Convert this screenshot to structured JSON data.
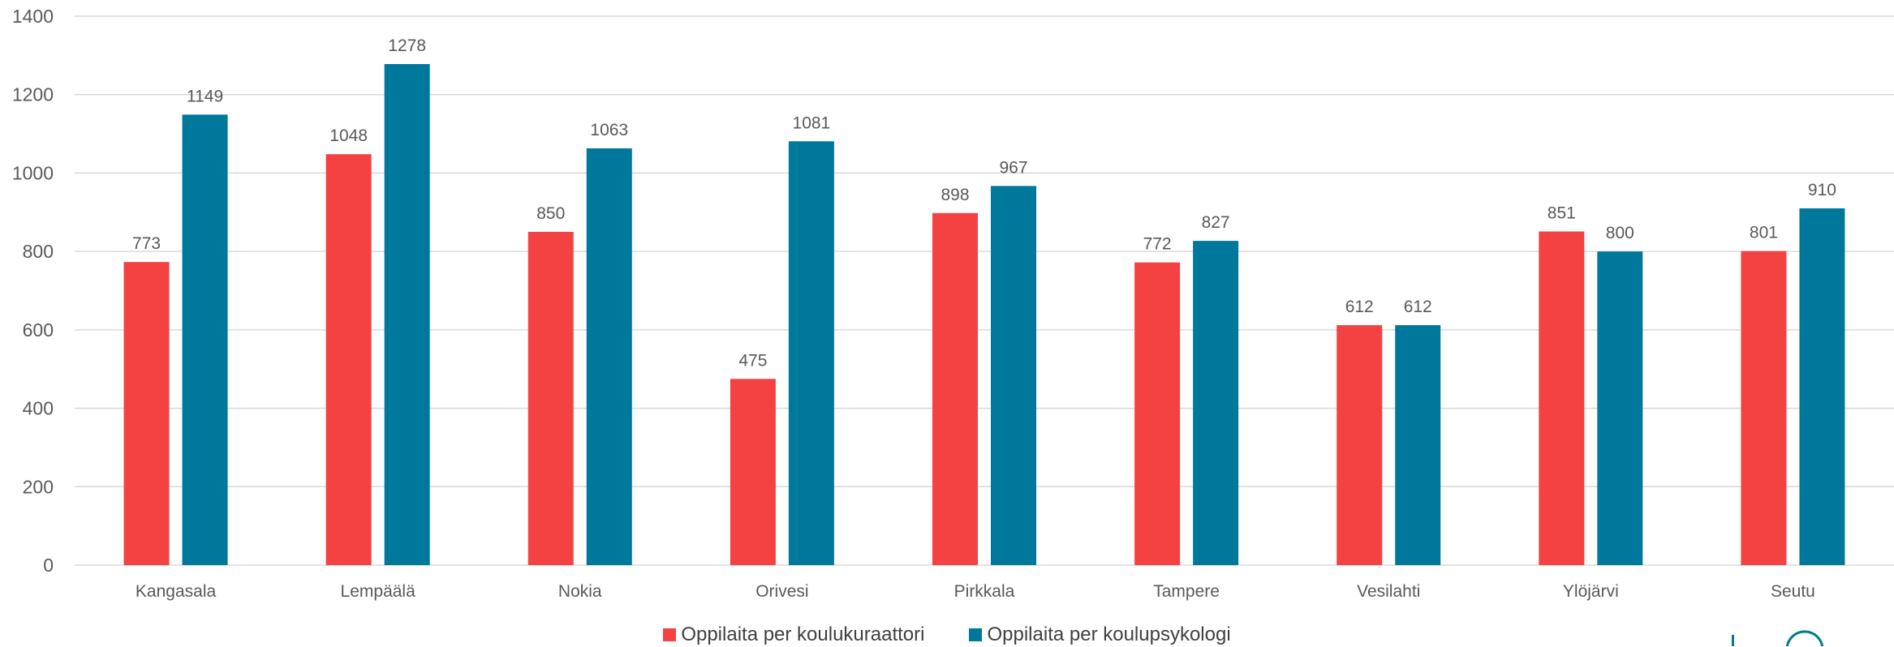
{
  "chart_data": {
    "type": "bar",
    "title": "",
    "xlabel": "",
    "ylabel": "",
    "ylim": [
      0,
      1400
    ],
    "yticks": [
      0,
      200,
      400,
      600,
      800,
      1000,
      1200,
      1400
    ],
    "grid": true,
    "legend_position": "bottom",
    "categories": [
      "Kangasala",
      "Lempäälä",
      "Nokia",
      "Orivesi",
      "Pirkkala",
      "Tampere",
      "Vesilahti",
      "Ylöjärvi",
      "Seutu"
    ],
    "series": [
      {
        "name": "Oppilaita per koulukuraattori",
        "color": "#f44141",
        "values": [
          773,
          1048,
          850,
          475,
          898,
          772,
          612,
          851,
          801
        ]
      },
      {
        "name": "Oppilaita per koulupsykologi",
        "color": "#00789b",
        "values": [
          1149,
          1278,
          1063,
          1081,
          967,
          827,
          612,
          800,
          910
        ]
      }
    ]
  },
  "colors": {
    "grid": "#d9d9d9",
    "text": "#595959",
    "logo": "#007b8a"
  },
  "logo": {
    "icon": "logo-icon"
  }
}
